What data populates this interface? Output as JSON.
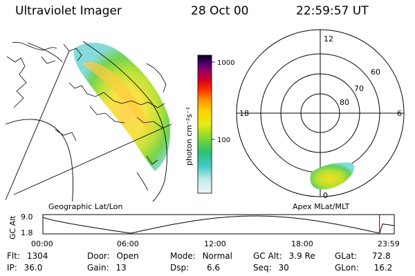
{
  "header": {
    "title": "Ultraviolet Imager",
    "date": "28 Oct 00",
    "time": "22:59:57 UT"
  },
  "colorbar": {
    "unit_label": "photon cm⁻²s⁻¹",
    "ticks": [
      "1000",
      "100"
    ]
  },
  "polar_plot": {
    "mlt_labels": [
      "12",
      "18",
      "6",
      "0"
    ],
    "mlat_labels": [
      "60",
      "70",
      "80"
    ]
  },
  "panels": {
    "left_label": "Geographic Lat/Lon",
    "right_label": "Apex MLat/MLT"
  },
  "orbit": {
    "y_axis_title": "GC Alt",
    "y_ticks": [
      "9.0",
      "1.8"
    ],
    "x_ticks": [
      "00:00",
      "06:00",
      "12:00",
      "18:00",
      "23:59"
    ],
    "marker_time_hours": 22.99
  },
  "info": {
    "flt": {
      "label": "Flt:",
      "value": "1304"
    },
    "ip": {
      "label": "IP:",
      "value": "36.0"
    },
    "door": {
      "label": "Door:",
      "value": "Open"
    },
    "gain": {
      "label": "Gain:",
      "value": "13"
    },
    "mode": {
      "label": "Mode:",
      "value": "Normal"
    },
    "dsp": {
      "label": "Dsp:",
      "value": "6.6"
    },
    "gcalt": {
      "label": "GC Alt:",
      "value": "3.9 Re"
    },
    "seq": {
      "label": "Seq:",
      "value": "30"
    },
    "glat": {
      "label": "GLat:",
      "value": "72.8"
    },
    "glon": {
      "label": "GLon:",
      "value": "16.2"
    }
  },
  "colors": {
    "orbit_marker": "#d00000",
    "colorbar": [
      "#e8f4f4",
      "#c8ecec",
      "#7fd8e0",
      "#40c8c0",
      "#30c080",
      "#60d040",
      "#b0e020",
      "#f0f000",
      "#ffd000",
      "#ff9000",
      "#ff4000",
      "#e00010",
      "#a00060",
      "#600080",
      "#200040",
      "#000010"
    ]
  }
}
